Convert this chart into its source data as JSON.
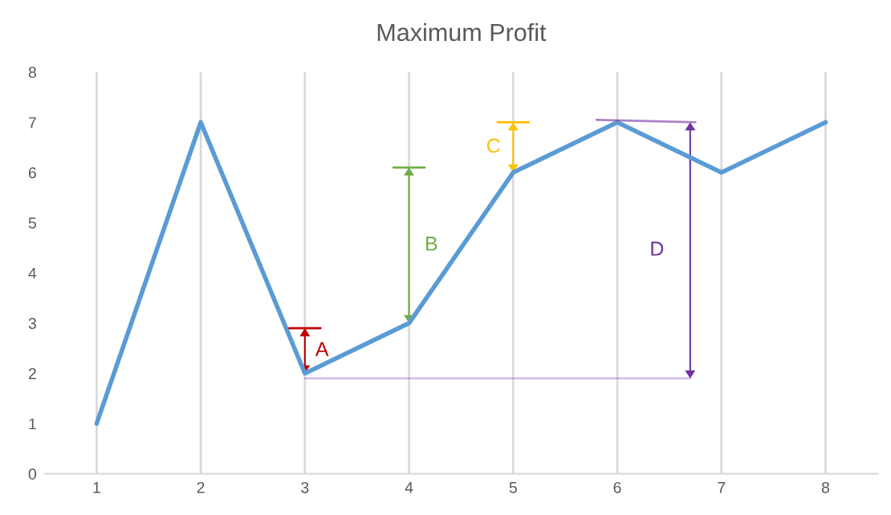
{
  "chart_data": {
    "type": "line",
    "title": "Maximum Profit",
    "categories": [
      "1",
      "2",
      "3",
      "4",
      "5",
      "6",
      "7",
      "8"
    ],
    "series": [
      {
        "color": "#5b9bd5",
        "values": [
          1,
          7,
          2,
          3,
          6,
          7,
          6,
          7
        ]
      }
    ],
    "ylim": [
      0,
      8
    ],
    "yticks": [
      0,
      1,
      2,
      3,
      4,
      5,
      6,
      7,
      8
    ],
    "grid": "x",
    "marker": "none",
    "line_style": "solid",
    "annotations": [
      "A",
      "B",
      "C",
      "D"
    ]
  }
}
